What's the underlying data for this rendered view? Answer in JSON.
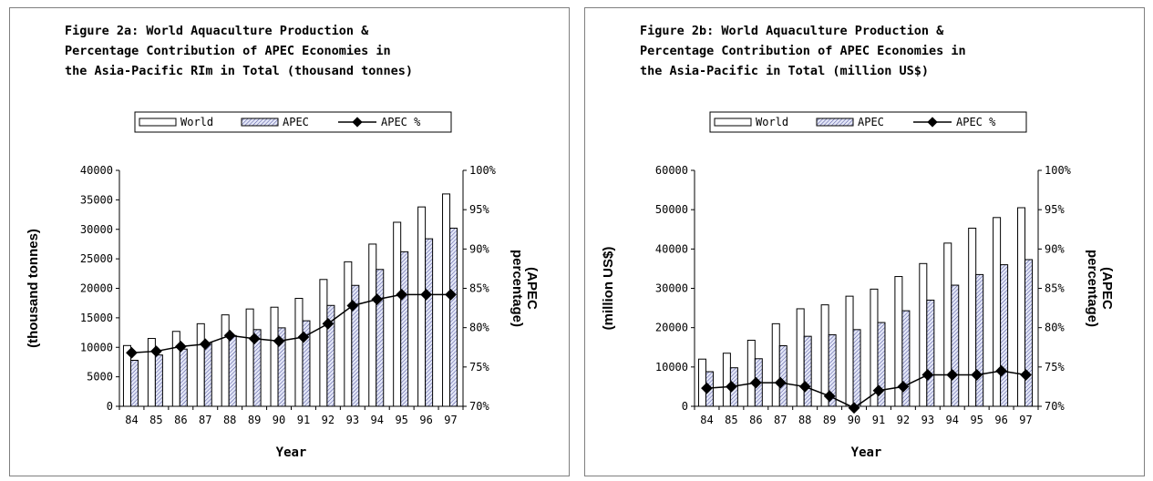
{
  "chart_data": [
    {
      "type": "bar",
      "title_lines": [
        "Figure 2a: World Aquaculture Production &",
        "Percentage Contribution of APEC Economies in",
        "the Asia-Pacific RIm in Total (thousand tonnes)"
      ],
      "xlabel": "Year",
      "ylabel": "(thousand tonnes)",
      "y2label_lines": [
        "(APEC",
        "percentage)"
      ],
      "categories": [
        "84",
        "85",
        "86",
        "87",
        "88",
        "89",
        "90",
        "91",
        "92",
        "93",
        "94",
        "95",
        "96",
        "97"
      ],
      "ylim": [
        0,
        40000
      ],
      "yticks": [
        "0",
        "5000",
        "10000",
        "15000",
        "20000",
        "25000",
        "30000",
        "35000",
        "40000"
      ],
      "y2lim": [
        70,
        100
      ],
      "y2ticks": [
        "70%",
        "75%",
        "80%",
        "85%",
        "90%",
        "95%",
        "100%"
      ],
      "legend": [
        "World",
        "APEC",
        "APEC %"
      ],
      "series": [
        {
          "name": "World",
          "type": "bar",
          "values": [
            10300,
            11500,
            12700,
            14000,
            15500,
            16500,
            16800,
            18300,
            21500,
            24500,
            27500,
            31200,
            33800,
            36000
          ]
        },
        {
          "name": "APEC",
          "type": "bar",
          "values": [
            7800,
            8700,
            9700,
            10800,
            12000,
            13000,
            13300,
            14500,
            17100,
            20500,
            23200,
            26200,
            28400,
            30200
          ]
        },
        {
          "name": "APEC %",
          "type": "line",
          "axis": "right",
          "values": [
            76.8,
            77.0,
            77.6,
            77.9,
            79.0,
            78.6,
            78.3,
            78.8,
            80.5,
            82.8,
            83.6,
            84.2,
            84.2,
            84.2
          ]
        }
      ]
    },
    {
      "type": "bar",
      "title_lines": [
        "Figure 2b: World Aquaculture Production &",
        "Percentage Contribution of APEC Economies in",
        "the Asia-Pacific in Total (million US$)"
      ],
      "xlabel": "Year",
      "ylabel": "(million US$)",
      "y2label_lines": [
        "(APEC",
        "percentage)"
      ],
      "categories": [
        "84",
        "85",
        "86",
        "87",
        "88",
        "89",
        "90",
        "91",
        "92",
        "93",
        "94",
        "95",
        "96",
        "97"
      ],
      "ylim": [
        0,
        60000
      ],
      "yticks": [
        "0",
        "10000",
        "20000",
        "30000",
        "40000",
        "50000",
        "60000"
      ],
      "y2lim": [
        70,
        100
      ],
      "y2ticks": [
        "70%",
        "75%",
        "80%",
        "85%",
        "90%",
        "95%",
        "100%"
      ],
      "legend": [
        "World",
        "APEC",
        "APEC %"
      ],
      "series": [
        {
          "name": "World",
          "type": "bar",
          "values": [
            12000,
            13500,
            16800,
            21000,
            24800,
            25800,
            28000,
            29800,
            33000,
            36300,
            41500,
            45300,
            48000,
            50500
          ]
        },
        {
          "name": "APEC",
          "type": "bar",
          "values": [
            8800,
            9800,
            12100,
            15400,
            17800,
            18200,
            19500,
            21300,
            24300,
            27000,
            30800,
            33500,
            36000,
            37300
          ]
        },
        {
          "name": "APEC %",
          "type": "line",
          "axis": "right",
          "values": [
            72.3,
            72.5,
            73.0,
            73.0,
            72.5,
            71.3,
            69.8,
            72.0,
            72.5,
            74.0,
            74.0,
            74.0,
            74.5,
            74.0
          ]
        }
      ]
    }
  ]
}
